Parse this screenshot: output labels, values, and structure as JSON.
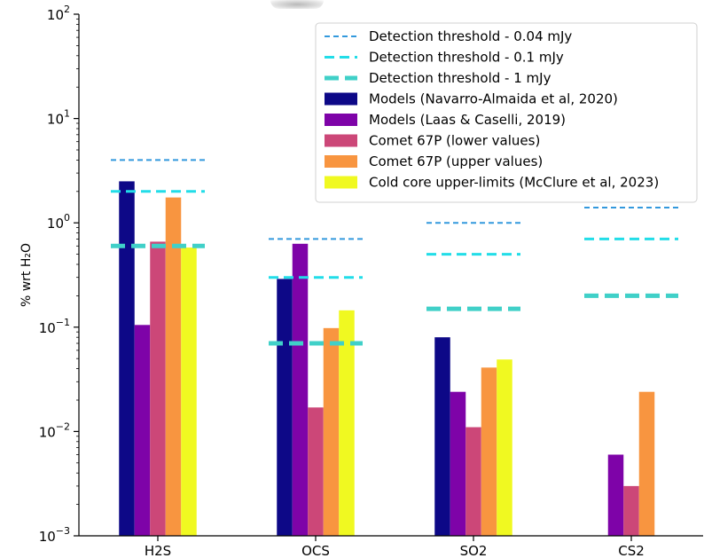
{
  "chart_data": {
    "type": "bar",
    "categories": [
      "H2S",
      "OCS",
      "SO2",
      "CS2"
    ],
    "ylabel": "% wrt H₂O",
    "yscale": "log",
    "ylim": [
      0.001,
      100
    ],
    "yticks": [
      {
        "value": 0.001,
        "base": "10",
        "exp": "−3"
      },
      {
        "value": 0.01,
        "base": "10",
        "exp": "−2"
      },
      {
        "value": 0.1,
        "base": "10",
        "exp": "−1"
      },
      {
        "value": 1,
        "base": "10",
        "exp": "0"
      },
      {
        "value": 10,
        "base": "10",
        "exp": "1"
      },
      {
        "value": 100,
        "base": "10",
        "exp": "2"
      }
    ],
    "series": [
      {
        "name": "Models (Navarro-Almaida et al, 2020)",
        "color": "#0d0887",
        "values": [
          2.5,
          0.29,
          0.08,
          null
        ]
      },
      {
        "name": "Models (Laas & Caselli, 2019)",
        "color": "#7e03a8",
        "values": [
          0.105,
          0.63,
          0.024,
          0.006
        ]
      },
      {
        "name": "Comet 67P (lower values)",
        "color": "#cc4778",
        "values": [
          0.66,
          0.017,
          0.011,
          0.003
        ]
      },
      {
        "name": "Comet 67P (upper values)",
        "color": "#f89540",
        "values": [
          1.75,
          0.098,
          0.041,
          0.024
        ]
      },
      {
        "name": "Cold core upper-limits (McClure et al, 2023)",
        "color": "#f0f921",
        "values": [
          0.58,
          0.145,
          0.049,
          null
        ]
      }
    ],
    "thresholds": [
      {
        "name": "Detection threshold - 0.04 mJy",
        "color": "#3399dd",
        "style": "fine",
        "values": [
          4.0,
          0.7,
          1.0,
          1.4
        ]
      },
      {
        "name": "Detection threshold - 0.1 mJy",
        "color": "#22dde8",
        "style": "medium",
        "values": [
          2.0,
          0.3,
          0.5,
          0.7
        ]
      },
      {
        "name": "Detection threshold - 1 mJy",
        "color": "#40d0c8",
        "style": "thick",
        "values": [
          0.6,
          0.07,
          0.15,
          0.2
        ]
      }
    ],
    "legend_position": "upper right"
  }
}
